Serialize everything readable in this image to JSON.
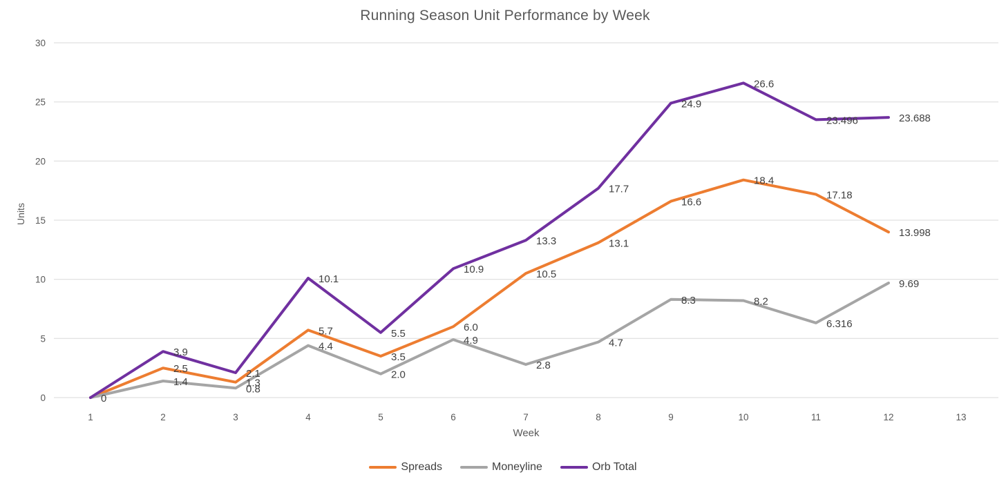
{
  "chart_data": {
    "type": "line",
    "title": "Running Season Unit Performance by Week",
    "xlabel": "Week",
    "ylabel": "Units",
    "x": [
      1,
      2,
      3,
      4,
      5,
      6,
      7,
      8,
      9,
      10,
      11,
      12
    ],
    "x_ticks": [
      1,
      2,
      3,
      4,
      5,
      6,
      7,
      8,
      9,
      10,
      11,
      12,
      13
    ],
    "y_ticks": [
      0,
      5,
      10,
      15,
      20,
      25,
      30
    ],
    "ylim": [
      0,
      30
    ],
    "grid": "horizontal",
    "legend_position": "bottom-center",
    "series": [
      {
        "name": "Spreads",
        "color": "#ED7D31",
        "values": [
          0,
          2.5,
          1.3,
          5.7,
          3.5,
          6.0,
          10.5,
          13.1,
          16.6,
          18.4,
          17.18,
          13.998
        ],
        "labels": [
          "0",
          "2.5",
          "1.3",
          "5.7",
          "3.5",
          "6.0",
          "10.5",
          "13.1",
          "16.6",
          "18.4",
          "17.18",
          "13.998"
        ]
      },
      {
        "name": "Moneyline",
        "color": "#A5A5A5",
        "values": [
          0,
          1.4,
          0.8,
          4.4,
          2.0,
          4.9,
          2.8,
          4.7,
          8.3,
          8.2,
          6.316,
          9.69
        ],
        "labels": [
          "",
          "1.4",
          "0.8",
          "4.4",
          "2.0",
          "4.9",
          "2.8",
          "4.7",
          "8.3",
          "8.2",
          "6.316",
          "9.69"
        ]
      },
      {
        "name": "Orb Total",
        "color": "#7030A0",
        "values": [
          0,
          3.9,
          2.1,
          10.1,
          5.5,
          10.9,
          13.3,
          17.7,
          24.9,
          26.6,
          23.496,
          23.688
        ],
        "labels": [
          "",
          "3.9",
          "2.1",
          "10.1",
          "5.5",
          "10.9",
          "13.3",
          "17.7",
          "24.9",
          "26.6",
          "23.496",
          "23.688"
        ]
      }
    ],
    "colors": {
      "gridline": "#D9D9D9",
      "tick_text": "#595959",
      "data_label_text": "#404040",
      "title_text": "#595959"
    }
  }
}
